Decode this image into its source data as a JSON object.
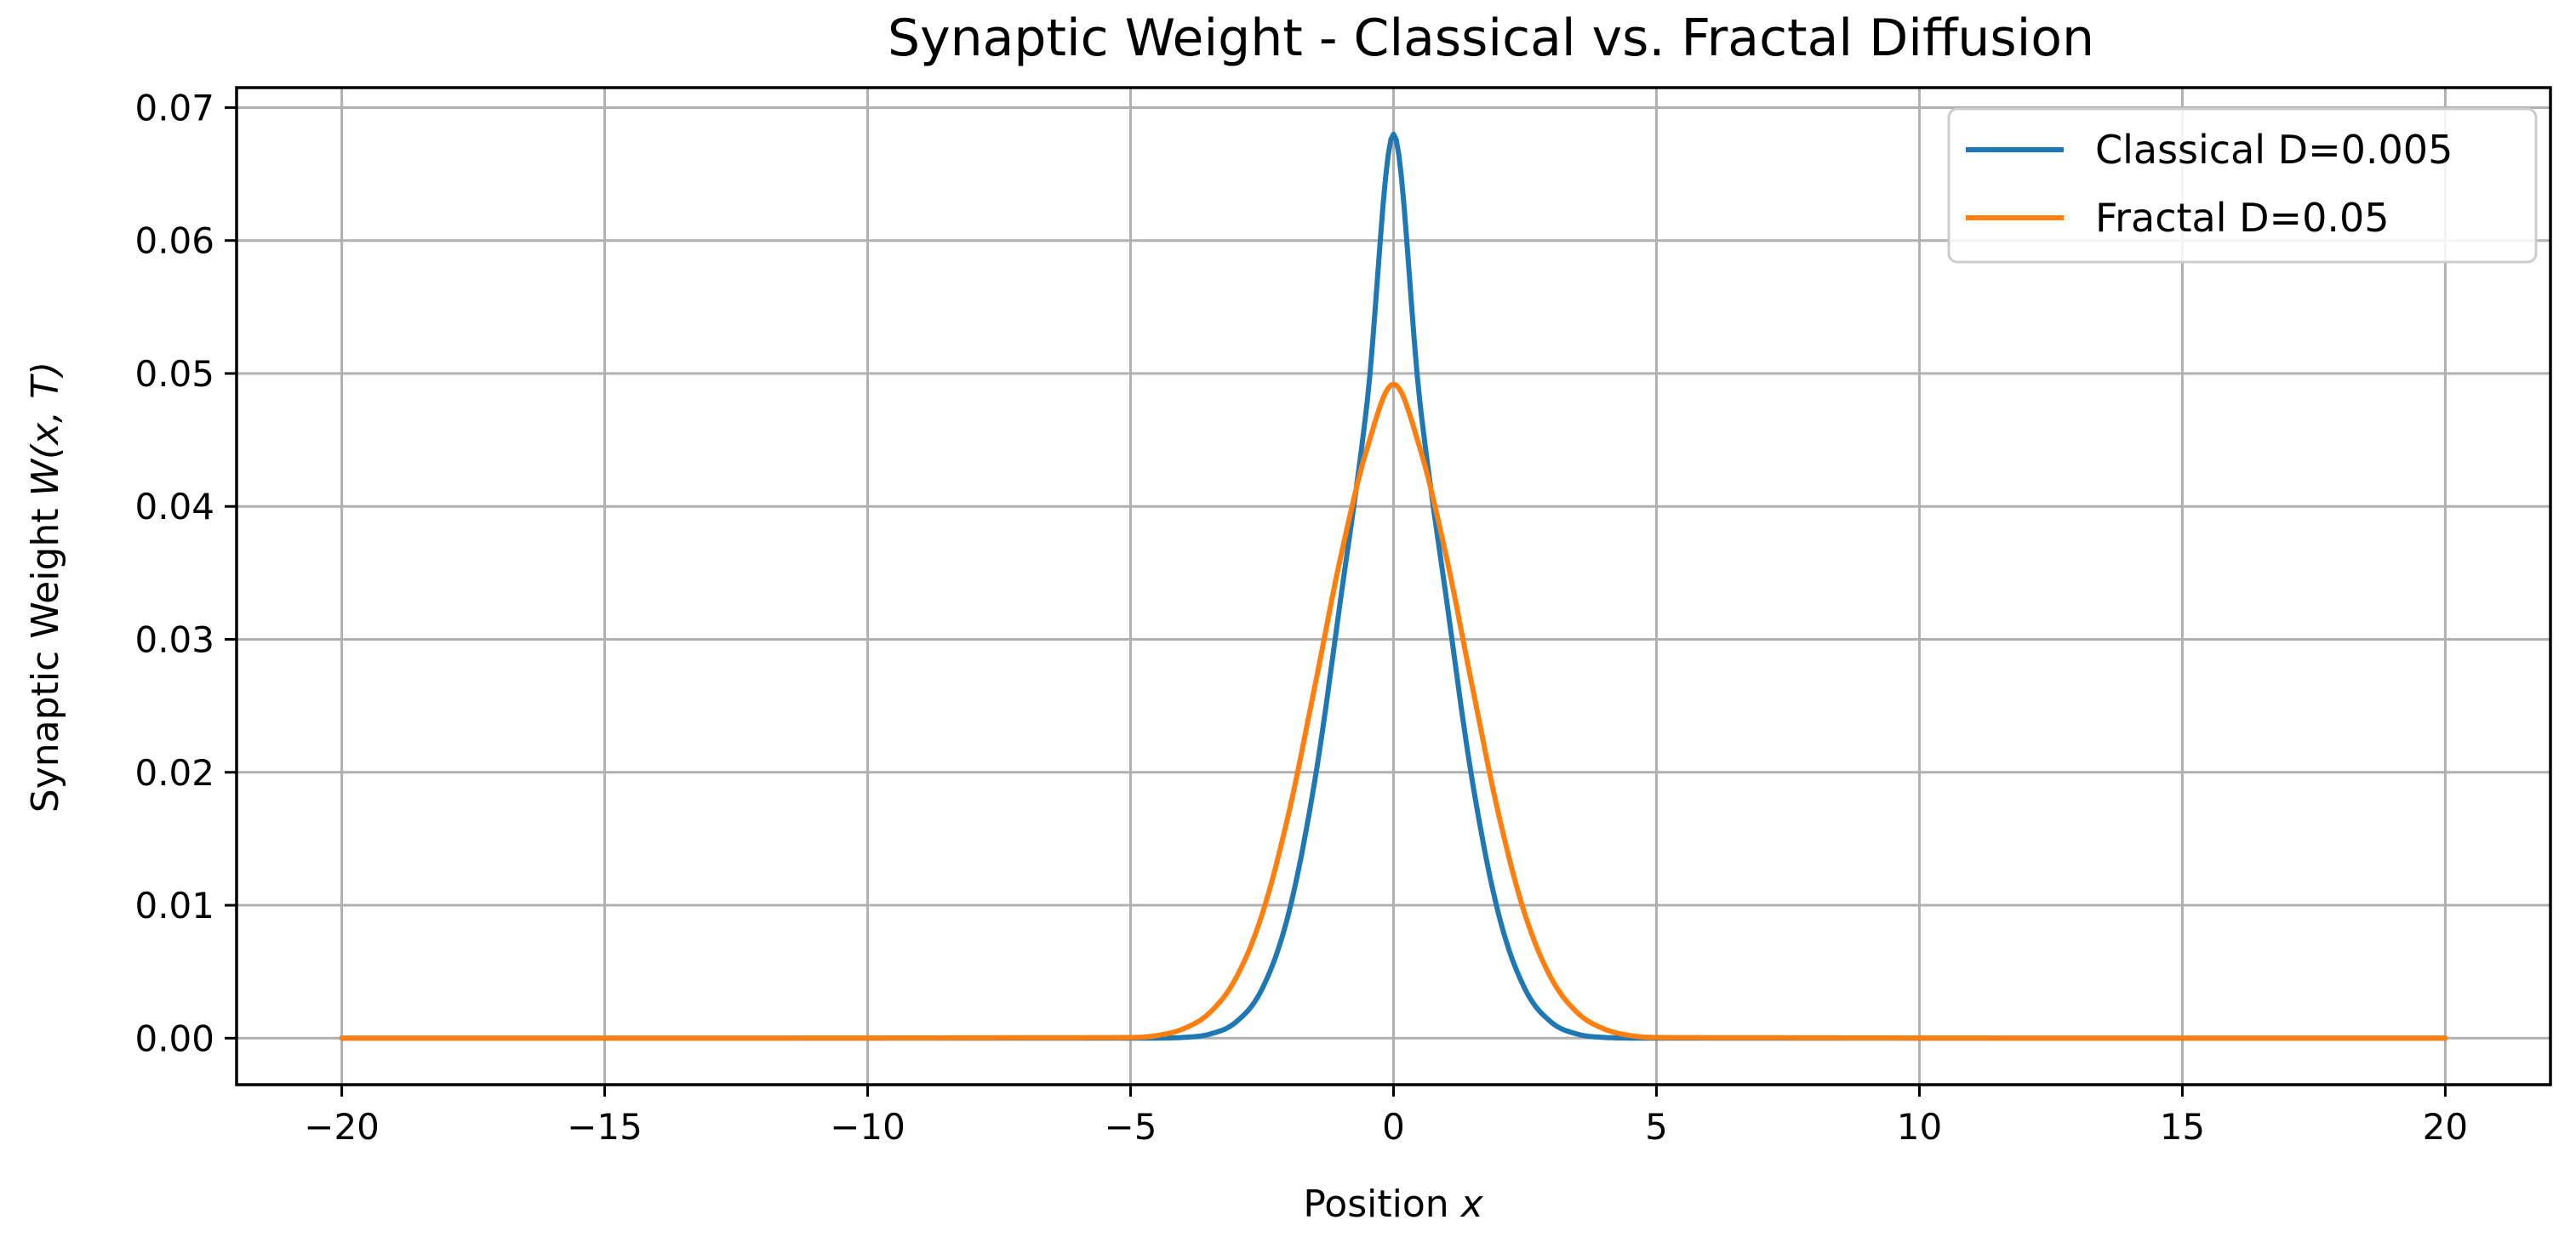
{
  "chart_data": {
    "type": "line",
    "title": "Synaptic Weight - Classical vs. Fractal Diffusion",
    "xlabel": "Position x",
    "xlabel_text": "Position ",
    "xlabel_var": "x",
    "ylabel": "Synaptic Weight W(x, T)",
    "ylabel_text": "Synaptic Weight ",
    "ylabel_var": "W(x, T)",
    "xlim": [
      -22,
      22
    ],
    "ylim": [
      -0.0035,
      0.0715
    ],
    "xticks": [
      -20,
      -15,
      -10,
      -5,
      0,
      5,
      10,
      15,
      20
    ],
    "xtick_labels": [
      "−20",
      "−15",
      "−10",
      "−5",
      "0",
      "5",
      "10",
      "15",
      "20"
    ],
    "yticks": [
      0.0,
      0.01,
      0.02,
      0.03,
      0.04,
      0.05,
      0.06,
      0.07
    ],
    "ytick_labels": [
      "0.00",
      "0.01",
      "0.02",
      "0.03",
      "0.04",
      "0.05",
      "0.06",
      "0.07"
    ],
    "grid": true,
    "legend_position": "top-right",
    "series": [
      {
        "name": "Classical D=0.005",
        "color": "#1f77b4",
        "x": [
          -20,
          -5,
          -4.5,
          -4,
          -3.5,
          -3,
          -2.5,
          -2,
          -1.5,
          -1,
          -0.5,
          0,
          0.5,
          1,
          1.5,
          2,
          2.5,
          3,
          3.5,
          4,
          4.5,
          5,
          20
        ],
        "y": [
          0.0,
          0.0,
          1e-05,
          6e-05,
          0.0003,
          0.0012,
          0.0037,
          0.0093,
          0.0193,
          0.0332,
          0.0479,
          0.068,
          0.0479,
          0.0332,
          0.0193,
          0.0093,
          0.0037,
          0.0012,
          0.0003,
          6e-05,
          1e-05,
          0.0,
          0.0
        ]
      },
      {
        "name": "Fractal D=0.05",
        "color": "#ff7f0e",
        "x": [
          -20,
          -5,
          -4.5,
          -4,
          -3.5,
          -3,
          -2.5,
          -2,
          -1.5,
          -1,
          -0.5,
          0,
          0.5,
          1,
          1.5,
          2,
          2.5,
          3,
          3.5,
          4,
          4.5,
          5,
          20
        ],
        "y": [
          0.0,
          5e-05,
          0.0002,
          0.0007,
          0.0019,
          0.0045,
          0.0093,
          0.0168,
          0.0264,
          0.0363,
          0.0444,
          0.0492,
          0.0444,
          0.0363,
          0.0264,
          0.0168,
          0.0093,
          0.0045,
          0.0019,
          0.0007,
          0.0002,
          5e-05,
          0.0
        ]
      }
    ]
  }
}
